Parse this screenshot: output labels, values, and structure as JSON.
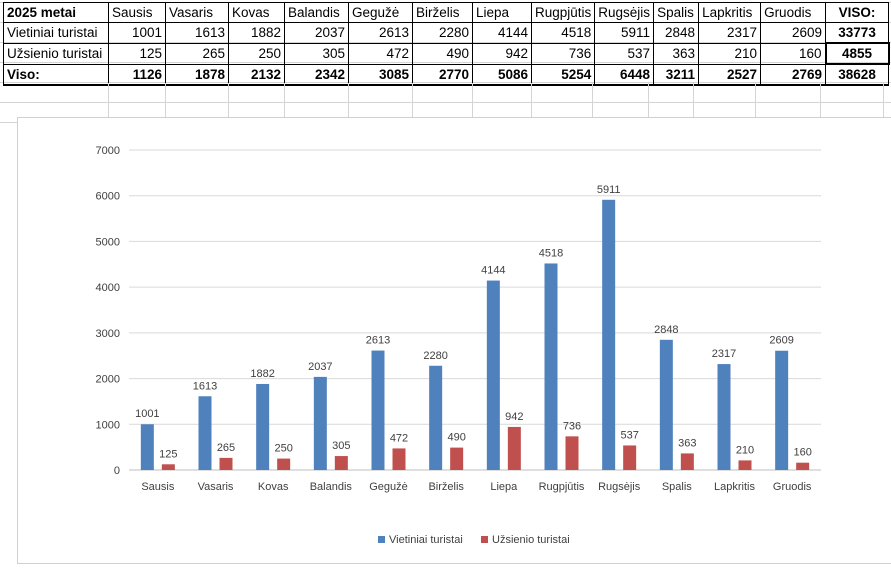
{
  "table": {
    "corner": "2025 metai",
    "months": [
      "Sausis",
      "Vasaris",
      "Kovas",
      "Balandis",
      "Gegužė",
      "Birželis",
      "Liepa",
      "Rugpjūtis",
      "Rugsėjis",
      "Spalis",
      "Lapkritis",
      "Gruodis"
    ],
    "total_header": "VISO:",
    "rows": [
      {
        "label": "Vietiniai turistai",
        "values": [
          "1001",
          "1613",
          "1882",
          "2037",
          "2613",
          "2280",
          "4144",
          "4518",
          "5911",
          "2848",
          "2317",
          "2609"
        ],
        "total": "33773"
      },
      {
        "label": "Užsienio turistai",
        "values": [
          "125",
          "265",
          "250",
          "305",
          "472",
          "490",
          "942",
          "736",
          "537",
          "363",
          "210",
          "160"
        ],
        "total": "4855"
      },
      {
        "label": "Viso:",
        "values": [
          "1126",
          "1878",
          "2132",
          "2342",
          "3085",
          "2770",
          "5086",
          "5254",
          "6448",
          "3211",
          "2527",
          "2769"
        ],
        "total": "38628"
      }
    ]
  },
  "chart_data": {
    "type": "bar",
    "title": "",
    "xlabel": "",
    "ylabel": "",
    "ylim": [
      0,
      7000
    ],
    "yticks": [
      0,
      1000,
      2000,
      3000,
      4000,
      5000,
      6000,
      7000
    ],
    "grid": true,
    "legend": "bottom",
    "categories": [
      "Sausis",
      "Vasaris",
      "Kovas",
      "Balandis",
      "Gegužė",
      "Birželis",
      "Liepa",
      "Rugpjūtis",
      "Rugsėjis",
      "Spalis",
      "Lapkritis",
      "Gruodis"
    ],
    "series": [
      {
        "name": "Vietiniai turistai",
        "color": "#4F81BD",
        "values": [
          1001,
          1613,
          1882,
          2037,
          2613,
          2280,
          4144,
          4518,
          5911,
          2848,
          2317,
          2609
        ]
      },
      {
        "name": "Užsienio turistai",
        "color": "#C0504D",
        "values": [
          125,
          265,
          250,
          305,
          472,
          490,
          942,
          736,
          537,
          363,
          210,
          160
        ]
      }
    ]
  }
}
